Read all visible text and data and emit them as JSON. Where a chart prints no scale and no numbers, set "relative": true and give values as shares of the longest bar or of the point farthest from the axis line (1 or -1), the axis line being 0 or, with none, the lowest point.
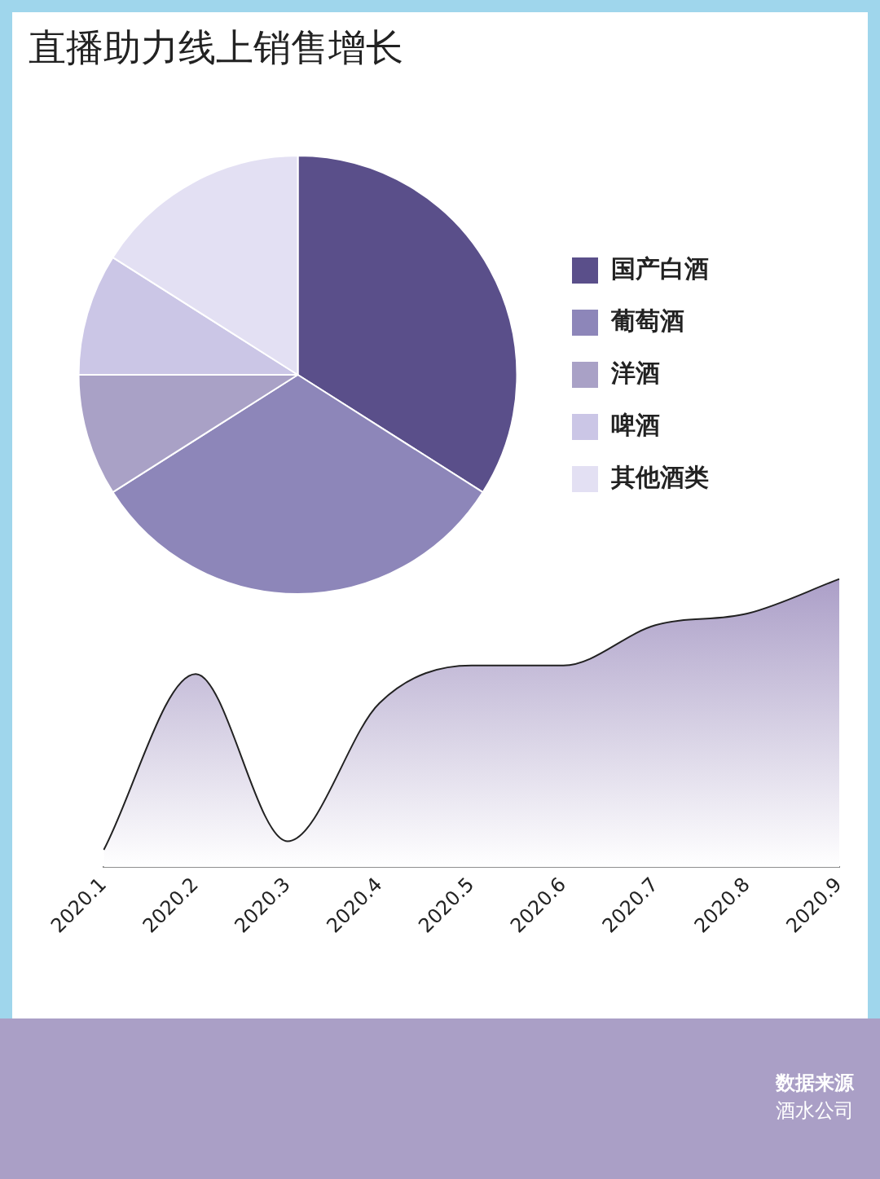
{
  "chart_data": [
    {
      "type": "pie",
      "title": "直播助力线上销售增长",
      "categories": [
        "国产白酒",
        "葡萄酒",
        "洋酒",
        "啤酒",
        "其他酒类"
      ],
      "values": [
        34,
        32,
        9,
        9,
        16
      ],
      "colors": [
        "#5a4f8a",
        "#8d86b9",
        "#a9a1c6",
        "#cbc6e6",
        "#e3e0f3"
      ],
      "legend": "right"
    },
    {
      "type": "area",
      "relative": true,
      "categories": [
        "2020.1",
        "2020.2",
        "2020.3",
        "2020.4",
        "2020.5",
        "2020.6",
        "2020.7",
        "2020.8",
        "2020.9"
      ],
      "series": [
        {
          "color": "#a99cc6",
          "values": [
            0.06,
            0.67,
            0.09,
            0.57,
            0.7,
            0.7,
            0.84,
            0.88,
            1
          ]
        }
      ],
      "legend": false,
      "grid": false,
      "annotations": [
        "数据来源",
        "酒水公司"
      ]
    }
  ]
}
